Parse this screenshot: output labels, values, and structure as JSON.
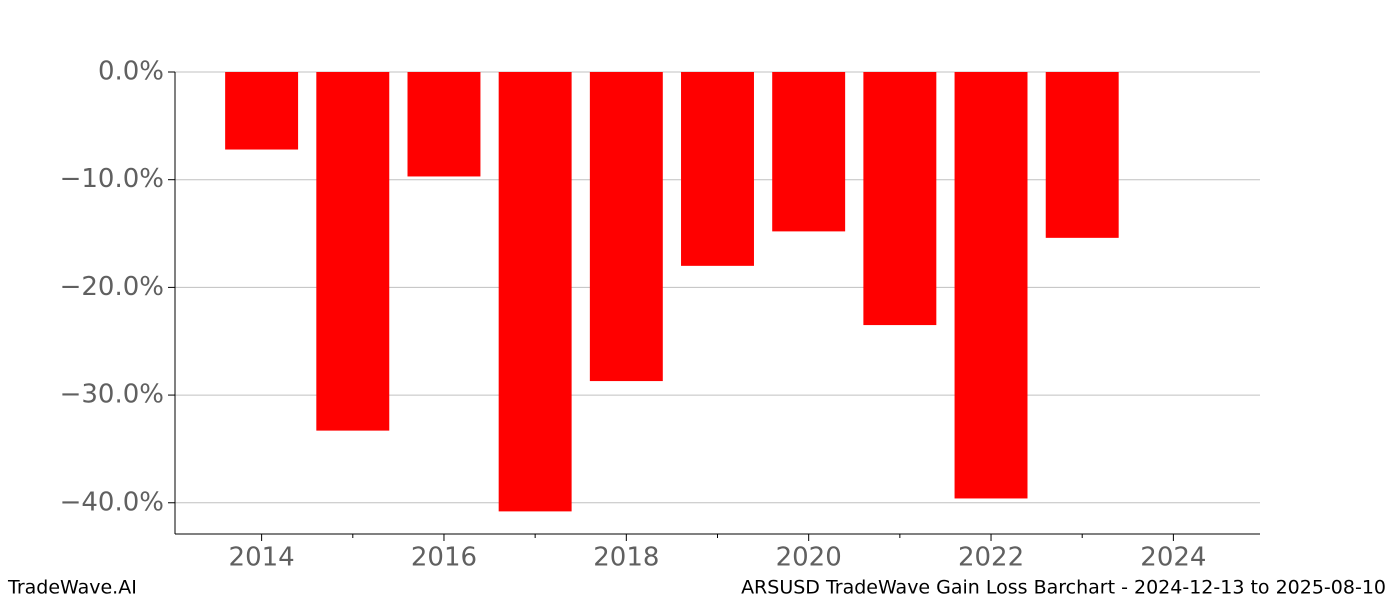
{
  "chart_data": {
    "type": "bar",
    "x": [
      2014,
      2015,
      2016,
      2017,
      2018,
      2019,
      2020,
      2021,
      2022,
      2023
    ],
    "values": [
      -7.2,
      -33.3,
      -9.7,
      -40.8,
      -28.7,
      -18.0,
      -14.8,
      -23.5,
      -39.6,
      -15.4
    ],
    "color": "#ff0000",
    "xlim": [
      2013.05,
      2024.95
    ],
    "xticks": [
      2014,
      2016,
      2018,
      2020,
      2022,
      2024
    ],
    "xminorticks": [
      2015,
      2017,
      2019,
      2021,
      2023
    ],
    "ylim": [
      -42.9,
      0
    ],
    "yticks": [
      {
        "value": 0,
        "label": "0.0%"
      },
      {
        "value": -10,
        "label": "−10.0%"
      },
      {
        "value": -20,
        "label": "−20.0%"
      },
      {
        "value": -30,
        "label": "−30.0%"
      },
      {
        "value": -40,
        "label": "−40.0%"
      }
    ],
    "grid": true,
    "watermark": "TradeWave.AI",
    "footer": "ARSUSD TradeWave Gain Loss Barchart - 2024-12-13 to 2025-08-10"
  }
}
